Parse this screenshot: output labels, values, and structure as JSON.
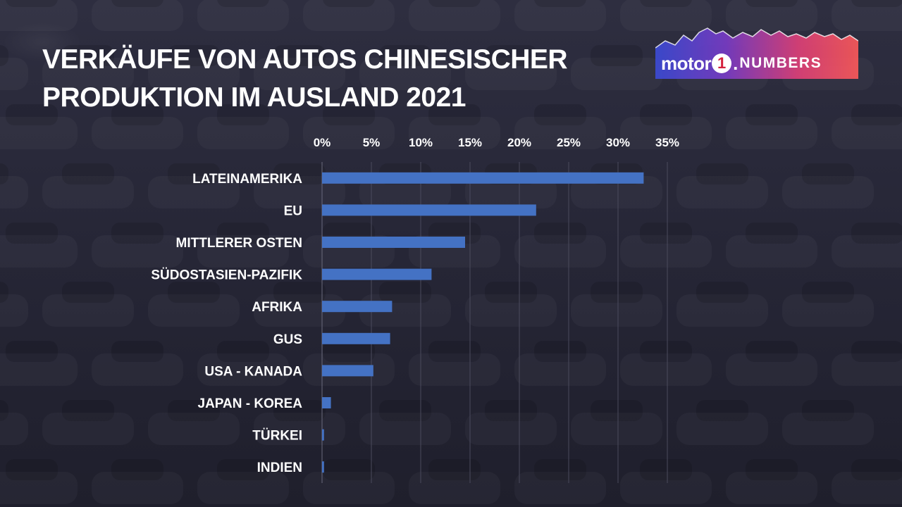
{
  "title": {
    "line1": "VERKÄUFE VON AUTOS CHINESISCHER",
    "line2": "PRODUKTION IM AUSLAND 2021"
  },
  "logo": {
    "motor": "motor",
    "one": "1",
    "dot": ".",
    "numbers": "NUMBERS"
  },
  "colors": {
    "background": "#262636",
    "bar": "#4472c4",
    "text": "#ffffff",
    "gridline": "#4a4a5c"
  },
  "chart_data": {
    "type": "bar",
    "orientation": "horizontal",
    "title": "VERKÄUFE VON AUTOS CHINESISCHER PRODUKTION IM AUSLAND 2021",
    "categories": [
      "LATEINAMERIKA",
      "EU",
      "MITTLERER OSTEN",
      "SÜDOSTASIEN-PAZIFIK",
      "AFRIKA",
      "GUS",
      "USA - KANADA",
      "JAPAN - KOREA",
      "TÜRKEI",
      "INDIEN"
    ],
    "values": [
      32.6,
      21.7,
      14.5,
      11.1,
      7.1,
      6.9,
      5.2,
      0.9,
      0.2,
      0.2
    ],
    "unit": "%",
    "xlim": [
      0,
      35
    ],
    "ticks": [
      "0%",
      "5%",
      "10%",
      "15%",
      "20%",
      "25%",
      "30%",
      "35%"
    ],
    "tick_values": [
      0,
      5,
      10,
      15,
      20,
      25,
      30,
      35
    ],
    "x_axis_position": "top",
    "grid": true,
    "legend": "none"
  }
}
